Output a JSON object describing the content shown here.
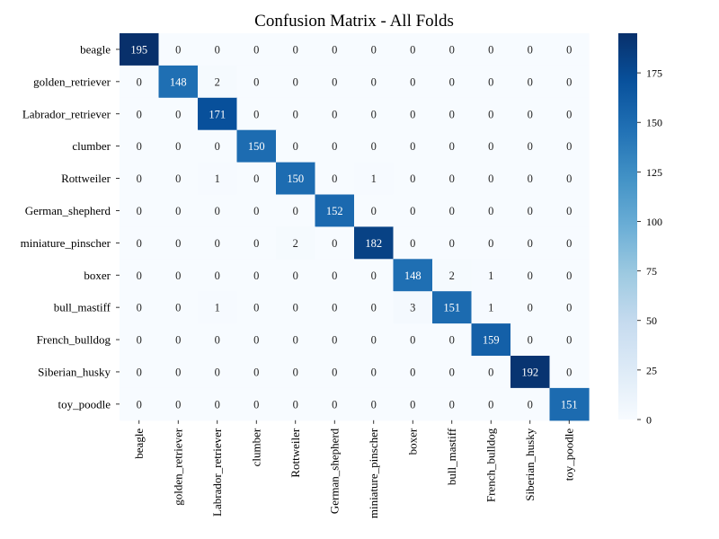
{
  "chart_data": {
    "type": "heatmap",
    "title": "Confusion Matrix - All Folds",
    "xlabel": "",
    "ylabel": "",
    "row_labels": [
      "beagle",
      "golden_retriever",
      "Labrador_retriever",
      "clumber",
      "Rottweiler",
      "German_shepherd",
      "miniature_pinscher",
      "boxer",
      "bull_mastiff",
      "French_bulldog",
      "Siberian_husky",
      "toy_poodle"
    ],
    "col_labels": [
      "beagle",
      "golden_retriever",
      "Labrador_retriever",
      "clumber",
      "Rottweiler",
      "German_shepherd",
      "miniature_pinscher",
      "boxer",
      "bull_mastiff",
      "French_bulldog",
      "Siberian_husky",
      "toy_poodle"
    ],
    "matrix": [
      [
        195,
        0,
        0,
        0,
        0,
        0,
        0,
        0,
        0,
        0,
        0,
        0
      ],
      [
        0,
        148,
        2,
        0,
        0,
        0,
        0,
        0,
        0,
        0,
        0,
        0
      ],
      [
        0,
        0,
        171,
        0,
        0,
        0,
        0,
        0,
        0,
        0,
        0,
        0
      ],
      [
        0,
        0,
        0,
        150,
        0,
        0,
        0,
        0,
        0,
        0,
        0,
        0
      ],
      [
        0,
        0,
        1,
        0,
        150,
        0,
        1,
        0,
        0,
        0,
        0,
        0
      ],
      [
        0,
        0,
        0,
        0,
        0,
        152,
        0,
        0,
        0,
        0,
        0,
        0
      ],
      [
        0,
        0,
        0,
        0,
        2,
        0,
        182,
        0,
        0,
        0,
        0,
        0
      ],
      [
        0,
        0,
        0,
        0,
        0,
        0,
        0,
        148,
        2,
        1,
        0,
        0
      ],
      [
        0,
        0,
        1,
        0,
        0,
        0,
        0,
        3,
        151,
        1,
        0,
        0
      ],
      [
        0,
        0,
        0,
        0,
        0,
        0,
        0,
        0,
        0,
        159,
        0,
        0
      ],
      [
        0,
        0,
        0,
        0,
        0,
        0,
        0,
        0,
        0,
        0,
        192,
        0
      ],
      [
        0,
        0,
        0,
        0,
        0,
        0,
        0,
        0,
        0,
        0,
        0,
        151
      ]
    ],
    "value_range": [
      0,
      195
    ],
    "colormap": "Blues",
    "colorbar_ticks": [
      0,
      25,
      50,
      75,
      100,
      125,
      150,
      175
    ],
    "annotations": true
  }
}
